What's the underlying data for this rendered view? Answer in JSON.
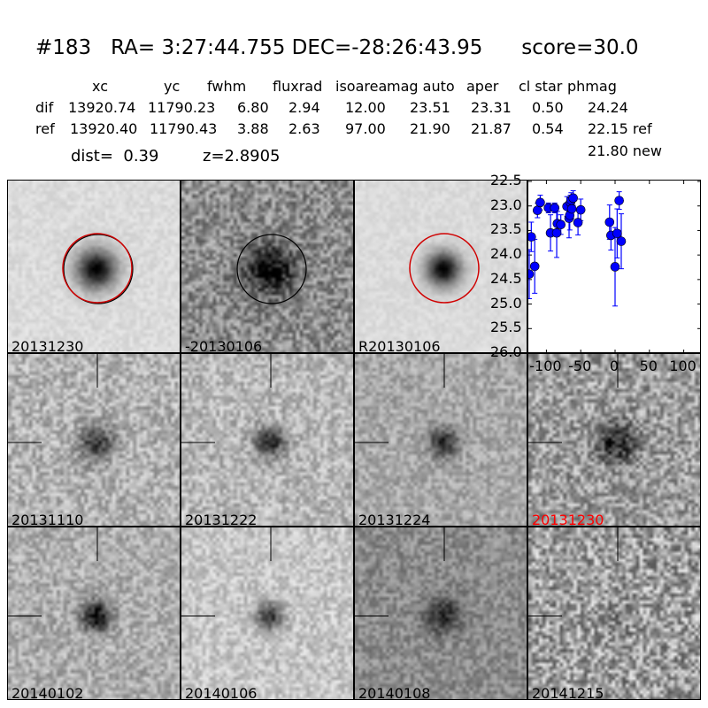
{
  "header": {
    "title": "#183   RA= 3:27:44.755 DEC=-28:26:43.95      score=30.0",
    "columns": [
      "xc",
      "yc",
      "fwhm",
      "fluxrad",
      "isoarea",
      "mag auto",
      "aper",
      "cl star",
      "phmag"
    ],
    "rows": [
      {
        "label": "dif",
        "values": [
          "13920.74",
          "11790.23",
          "6.80",
          "2.94",
          "12.00",
          "23.51",
          "23.31",
          "0.50",
          "24.24"
        ]
      },
      {
        "label": "ref",
        "values": [
          "13920.40",
          "11790.43",
          "3.88",
          "2.63",
          "97.00",
          "21.90",
          "21.87",
          "0.54",
          "22.15 ref"
        ]
      }
    ],
    "extra_phmag": "21.80 new",
    "dist": "dist=  0.39",
    "z": "z=2.8905"
  },
  "panels": [
    {
      "label": "20131230",
      "color": "#000000",
      "circle": "red-black"
    },
    {
      "label": "-20130106",
      "color": "#000000",
      "circle": "black"
    },
    {
      "label": "R20130106",
      "color": "#000000",
      "circle": "red"
    },
    {
      "label": "20131110",
      "color": "#000000"
    },
    {
      "label": "20131222",
      "color": "#000000"
    },
    {
      "label": "20131224",
      "color": "#000000"
    },
    {
      "label": "20131230",
      "color": "#ff0000"
    },
    {
      "label": "20140102",
      "color": "#000000"
    },
    {
      "label": "20140106",
      "color": "#000000"
    },
    {
      "label": "20140108",
      "color": "#000000"
    },
    {
      "label": "20141215",
      "color": "#000000"
    }
  ],
  "chart_data": {
    "type": "scatter",
    "xlim": [
      -125,
      125
    ],
    "ylim": [
      26.0,
      22.5
    ],
    "y_inverted": true,
    "xticks": [
      "-100",
      "-50",
      "0",
      "50",
      "100"
    ],
    "yticks": [
      "22.5",
      "23.0",
      "23.5",
      "24.0",
      "24.5",
      "25.0",
      "25.5",
      "26.0"
    ],
    "marker_color": "#0000ff",
    "points": [
      {
        "x": -125,
        "y": 24.39,
        "err": 0.5
      },
      {
        "x": -122,
        "y": 23.63,
        "err": 0.3
      },
      {
        "x": -117,
        "y": 24.23,
        "err": 0.55
      },
      {
        "x": -113,
        "y": 23.09,
        "err": 0.15
      },
      {
        "x": -109,
        "y": 22.93,
        "err": 0.15
      },
      {
        "x": -97,
        "y": 23.04,
        "err": 0.1
      },
      {
        "x": -94,
        "y": 23.55,
        "err": 0.37
      },
      {
        "x": -88,
        "y": 23.04,
        "err": 0.1
      },
      {
        "x": -85,
        "y": 23.55,
        "err": 0.5
      },
      {
        "x": -84,
        "y": 23.36,
        "err": 0.25
      },
      {
        "x": -79,
        "y": 23.38,
        "err": 0.2
      },
      {
        "x": -70,
        "y": 23.01,
        "err": 0.2
      },
      {
        "x": -67,
        "y": 23.25,
        "err": 0.4
      },
      {
        "x": -66,
        "y": 23.19,
        "err": 0.3
      },
      {
        "x": -65,
        "y": 22.93,
        "err": 0.15
      },
      {
        "x": -64,
        "y": 22.88,
        "err": 0.15
      },
      {
        "x": -63,
        "y": 23.06,
        "err": 0.2
      },
      {
        "x": -61,
        "y": 22.84,
        "err": 0.15
      },
      {
        "x": -54,
        "y": 23.34,
        "err": 0.25
      },
      {
        "x": -50,
        "y": 23.08,
        "err": 0.22
      },
      {
        "x": -8,
        "y": 23.33,
        "err": 0.35
      },
      {
        "x": -6,
        "y": 23.6,
        "err": 0.3
      },
      {
        "x": 0,
        "y": 24.24,
        "err": 0.8
      },
      {
        "x": 3,
        "y": 23.56,
        "err": 0.5
      },
      {
        "x": 6,
        "y": 22.89,
        "err": 0.18
      },
      {
        "x": 9,
        "y": 23.72,
        "err": 0.56
      }
    ]
  }
}
